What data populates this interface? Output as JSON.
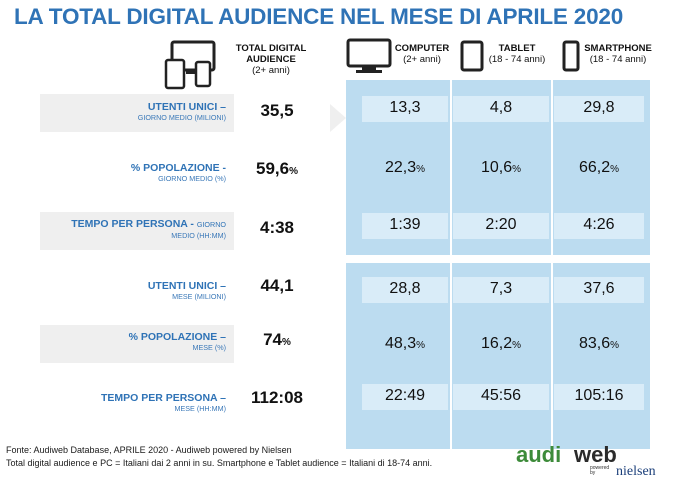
{
  "title": "LA TOTAL DIGITAL AUDIENCE NEL MESE DI APRILE 2020",
  "header": {
    "total": {
      "line1": "TOTAL DIGITAL",
      "line2": "AUDIENCE",
      "sub": "(2+ anni)"
    },
    "computer": {
      "label": "COMPUTER",
      "sub": "(2+ anni)"
    },
    "tablet": {
      "label": "TABLET",
      "sub": "(18 - 74 anni)"
    },
    "smartphone": {
      "label": "SMARTPHONE",
      "sub": "(18 - 74 anni)"
    }
  },
  "rows": [
    {
      "label": "UTENTI UNICI –",
      "sub": "GIORNO MEDIO (MILIONI)",
      "total": "35,5",
      "total_unit": "",
      "computer": "13,3",
      "computer_unit": "",
      "tablet": "4,8",
      "tablet_unit": "",
      "smartphone": "29,8",
      "smartphone_unit": ""
    },
    {
      "label": "% POPOLAZIONE -",
      "sub": "GIORNO MEDIO (%)",
      "total": "59,6",
      "total_unit": "%",
      "computer": "22,3",
      "computer_unit": "%",
      "tablet": "10,6",
      "tablet_unit": "%",
      "smartphone": "66,2",
      "smartphone_unit": "%"
    },
    {
      "label": "TEMPO PER PERSONA - ",
      "label_sub_inline": "GIORNO",
      "sub": "MEDIO (HH:MM)",
      "total": "4:38",
      "total_unit": "",
      "computer": "1:39",
      "computer_unit": "",
      "tablet": "2:20",
      "tablet_unit": "",
      "smartphone": "4:26",
      "smartphone_unit": ""
    },
    {
      "label": "UTENTI UNICI –",
      "sub": "MESE (MILIONI)",
      "total": "44,1",
      "total_unit": "",
      "computer": "28,8",
      "computer_unit": "",
      "tablet": "7,3",
      "tablet_unit": "",
      "smartphone": "37,6",
      "smartphone_unit": ""
    },
    {
      "label": "% POPOLAZIONE –",
      "sub": "MESE (%)",
      "total": "74",
      "total_unit": "%",
      "computer": "48,3",
      "computer_unit": "%",
      "tablet": "16,2",
      "tablet_unit": "%",
      "smartphone": "83,6",
      "smartphone_unit": "%"
    },
    {
      "label": "TEMPO PER PERSONA –",
      "sub": "MESE (HH:MM)",
      "total": "112:08",
      "total_unit": "",
      "computer": "22:49",
      "computer_unit": "",
      "tablet": "45:56",
      "tablet_unit": "",
      "smartphone": "105:16",
      "smartphone_unit": ""
    }
  ],
  "footer": {
    "line1": "Fonte: Audiweb Database, APRILE 2020 - Audiweb powered by Nielsen",
    "line2": "Total digital audience e PC = Italiani dai 2 anni in su. Smartphone e Tablet audience = Italiani di 18-74 anni."
  },
  "logo": {
    "aud": "audi",
    "web": "web",
    "powered": "powered",
    "by": "by",
    "nielsen": "nielsen"
  },
  "colors": {
    "title": "#2f73b6",
    "panel": "#bcdcf0",
    "cell": "#d9ecf8",
    "band": "#efefef",
    "logo_green": "#3d8b3a",
    "nielsen_blue": "#1b3f7a"
  }
}
